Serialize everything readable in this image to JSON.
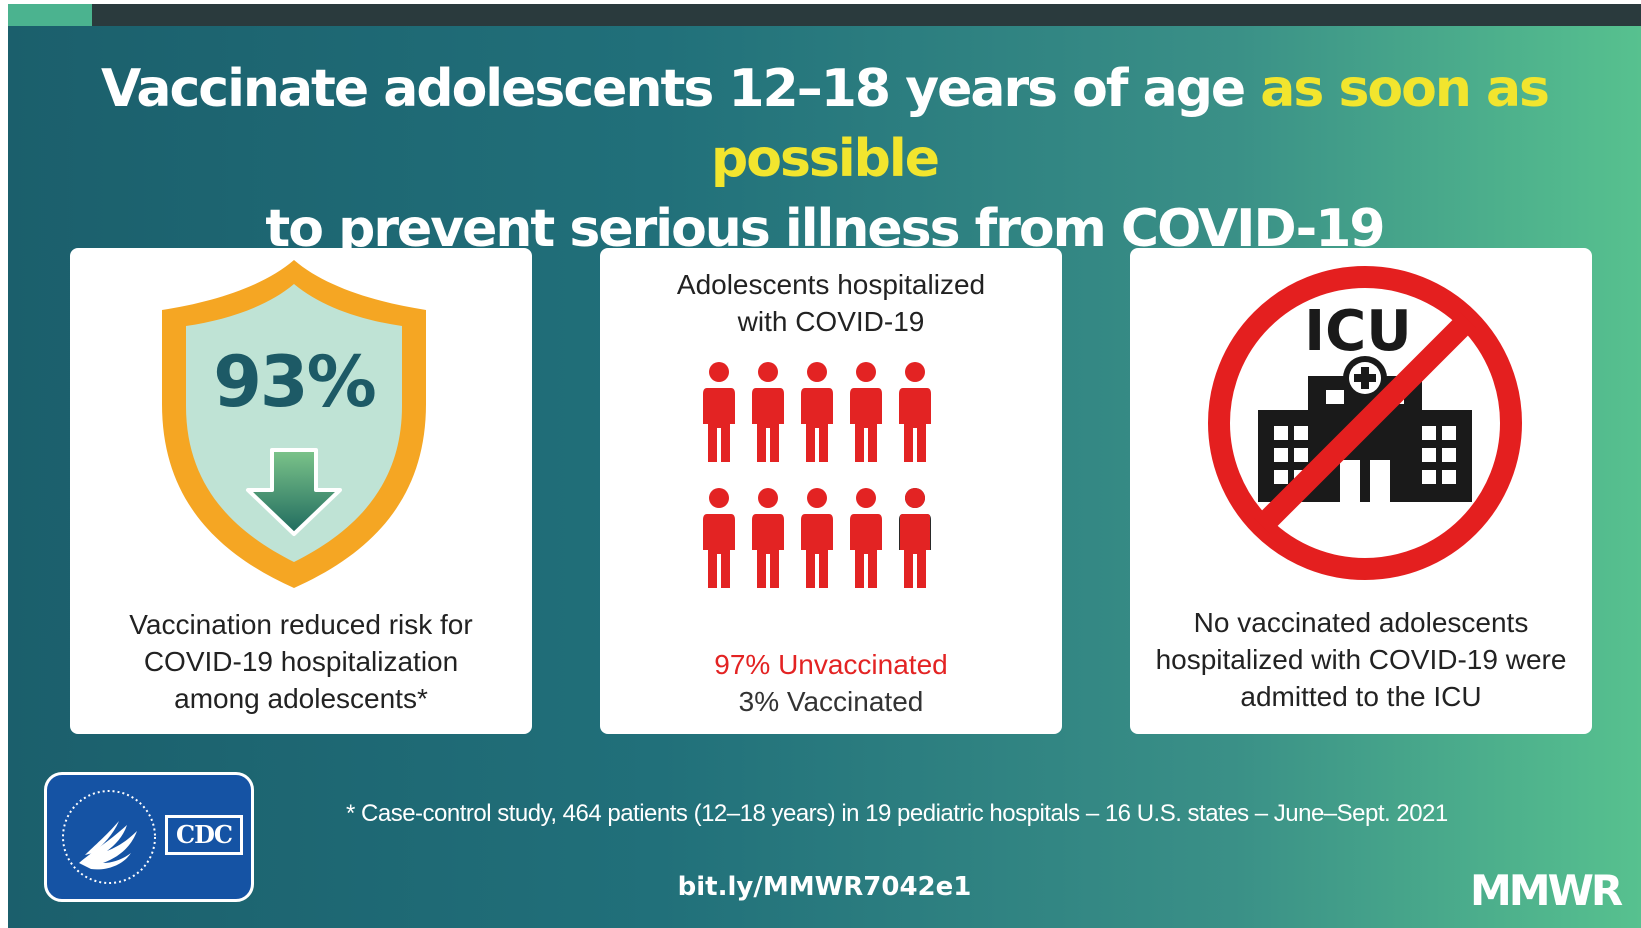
{
  "headline": {
    "line1_before": "Vaccinate adolescents 12–18 years of age ",
    "line1_highlight": "as soon as possible",
    "line2": "to prevent serious illness from COVID-19"
  },
  "card1": {
    "percent": "93%",
    "caption_lines": [
      "Vaccination reduced risk for",
      "COVID-19 hospitalization",
      "among adolescents*"
    ]
  },
  "card2": {
    "title_lines": [
      "Adolescents hospitalized",
      "with COVID-19"
    ],
    "unvaccinated": "97% Unvaccinated",
    "vaccinated": "3%  Vaccinated",
    "unvaccinated_share": 0.97,
    "vaccinated_share": 0.03
  },
  "card3": {
    "icon_label": "ICU",
    "caption_lines": [
      "No vaccinated adolescents",
      "hospitalized with COVID-19 were",
      "admitted to the ICU"
    ]
  },
  "footer": {
    "footnote": "* Case-control study, 464 patients (12–18 years) in 19 pediatric hospitals – 16 U.S. states – June–Sept. 2021",
    "url": "bit.ly/MMWR7042e1",
    "brand": "MMWR",
    "cdc_logo_text": "CDC"
  },
  "colors": {
    "highlight": "#f2e52e",
    "alert_red": "#e32323",
    "shield_orange": "#f5a623",
    "shield_fill": "#bfe3d5",
    "stat_teal": "#1d5a66",
    "cdc_blue": "#1553a4"
  },
  "icons": [
    "shield-icon",
    "down-arrow-icon",
    "person-icon",
    "hospital-icon",
    "prohibited-icon",
    "hhs-eagle-icon"
  ]
}
